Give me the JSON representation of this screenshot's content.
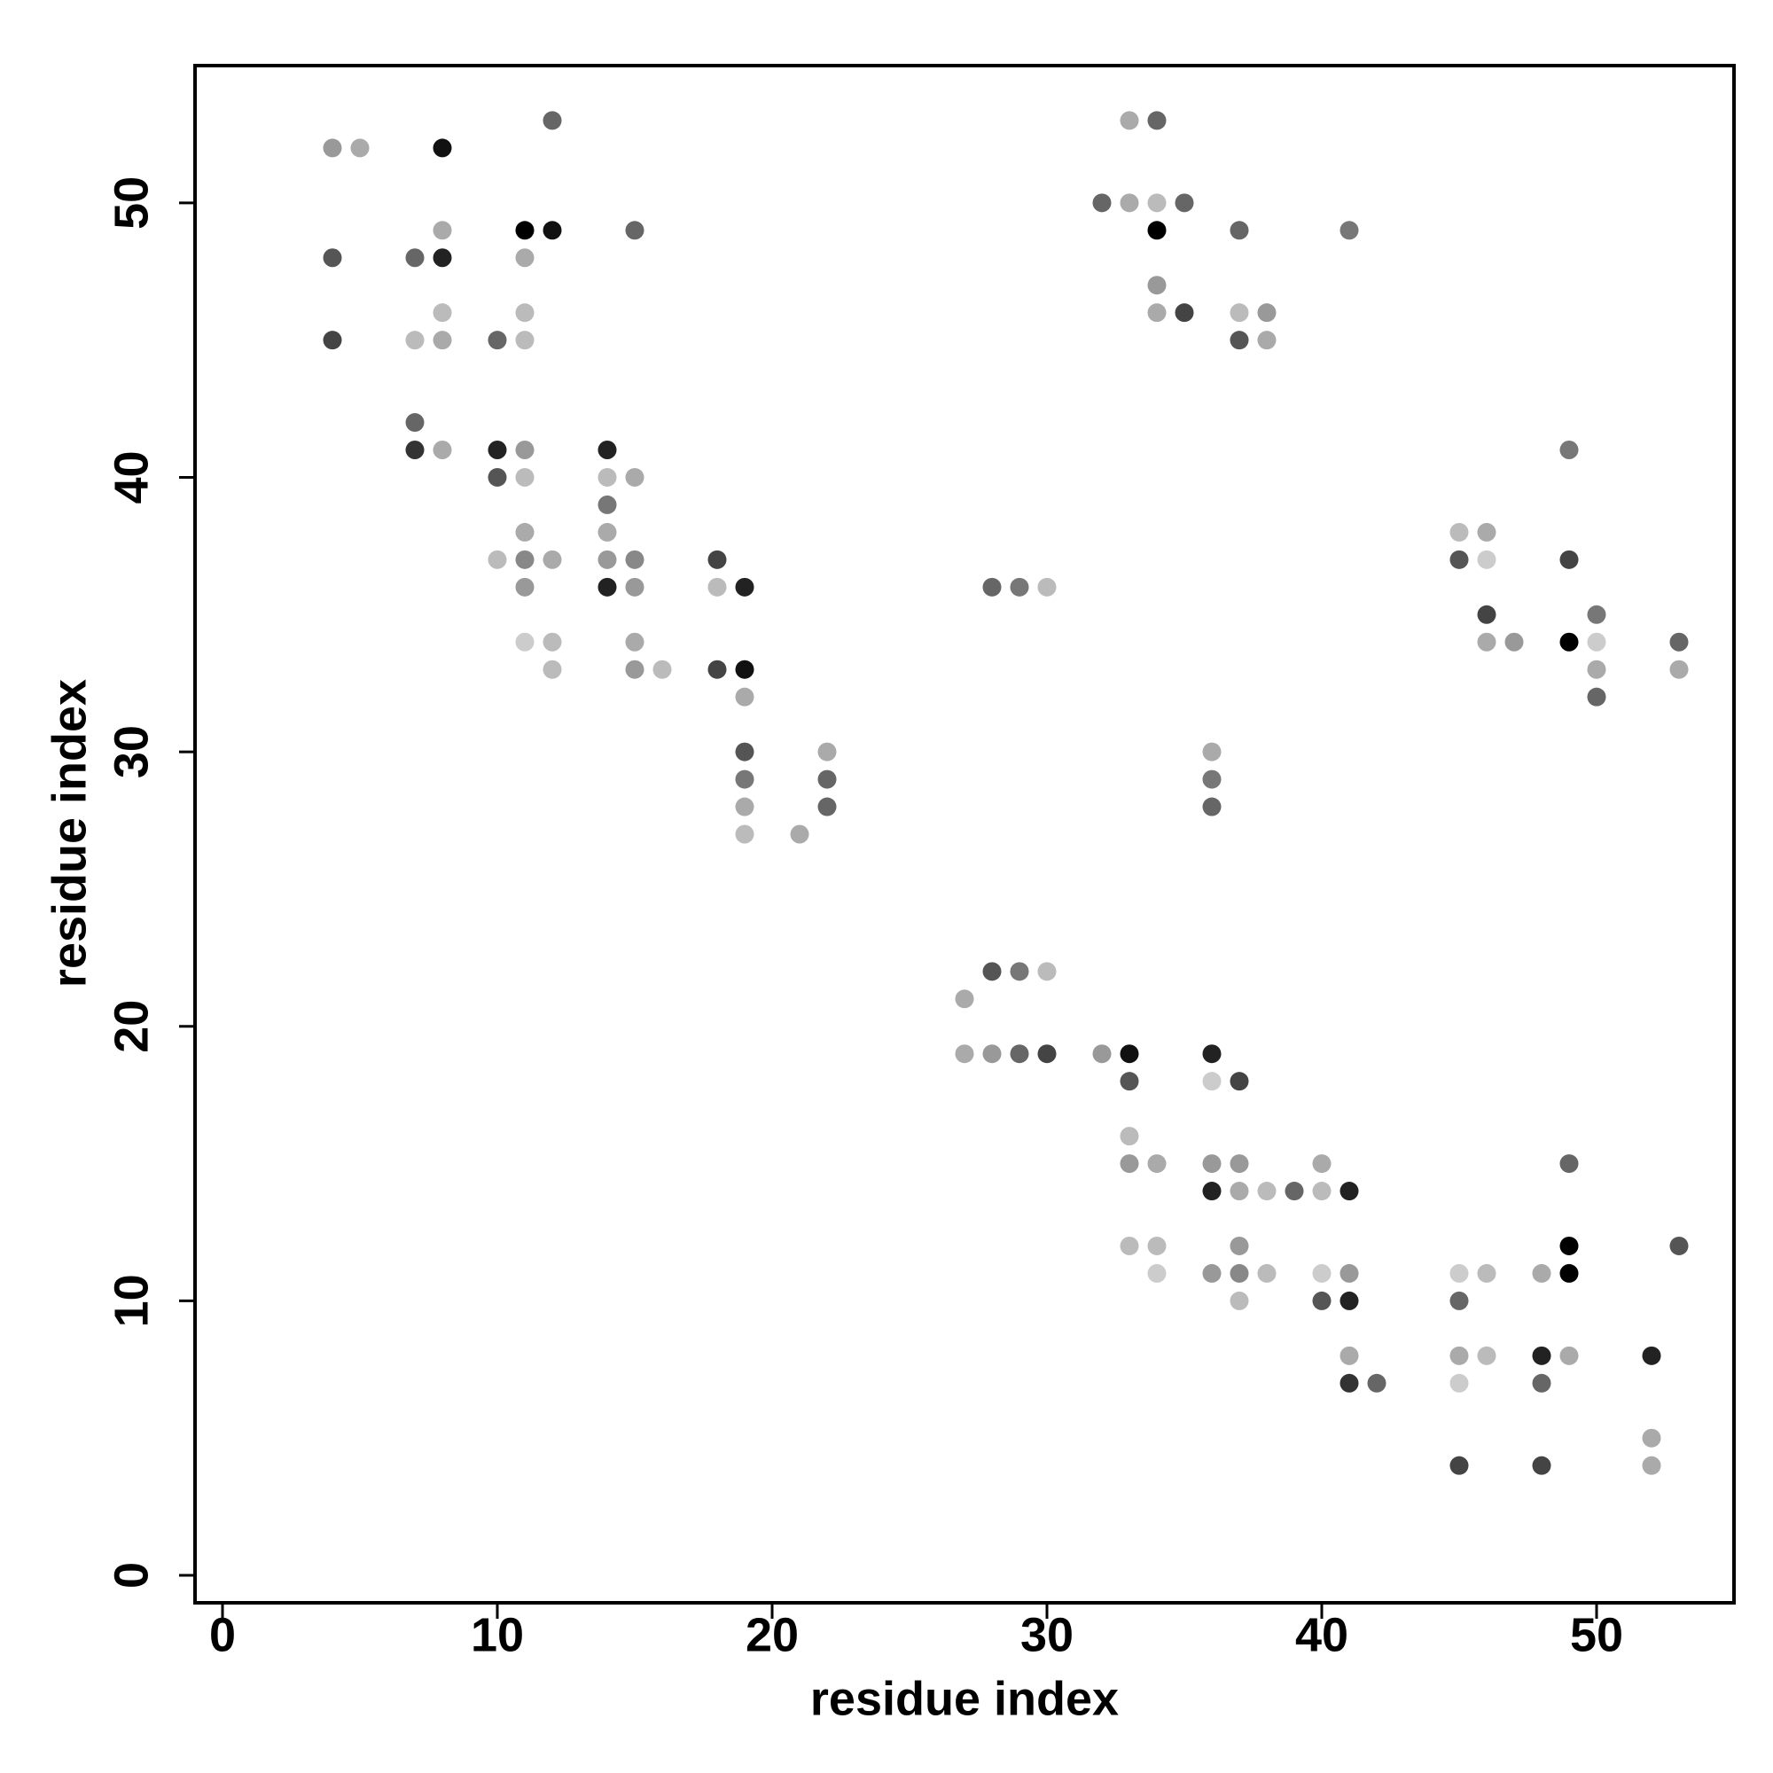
{
  "chart_data": {
    "type": "scatter",
    "x_label": "residue index",
    "y_label": "residue index",
    "xlim": [
      -1,
      55
    ],
    "ylim": [
      -1,
      55
    ],
    "xticks": [
      0,
      10,
      20,
      30,
      40,
      50
    ],
    "yticks": [
      0,
      10,
      20,
      30,
      40,
      50
    ],
    "x": [
      12,
      33,
      34,
      4,
      5,
      8,
      32,
      33,
      34,
      35,
      8,
      11,
      12,
      15,
      34,
      37,
      41,
      4,
      7,
      8,
      11,
      34,
      8,
      11,
      34,
      35,
      37,
      38,
      4,
      7,
      8,
      10,
      11,
      37,
      38,
      7,
      7,
      8,
      10,
      11,
      14,
      49,
      10,
      11,
      14,
      15,
      14,
      11,
      14,
      45,
      46,
      10,
      11,
      12,
      14,
      15,
      18,
      45,
      46,
      49,
      11,
      14,
      15,
      18,
      19,
      28,
      29,
      30,
      46,
      50,
      11,
      12,
      15,
      46,
      47,
      49,
      50,
      53,
      12,
      15,
      16,
      18,
      19,
      50,
      53,
      19,
      50,
      19,
      22,
      36,
      19,
      22,
      36,
      19,
      22,
      36,
      19,
      21,
      28,
      29,
      30,
      27,
      27,
      28,
      29,
      30,
      32,
      33,
      36,
      33,
      36,
      37,
      33,
      33,
      34,
      36,
      37,
      40,
      49,
      36,
      37,
      38,
      39,
      40,
      41,
      33,
      34,
      37,
      49,
      53,
      34,
      36,
      37,
      38,
      40,
      41,
      45,
      46,
      48,
      49,
      37,
      40,
      41,
      45,
      41,
      45,
      46,
      48,
      49,
      52,
      41,
      42,
      45,
      48,
      52,
      45,
      48,
      52
    ],
    "values": [
      53,
      53,
      53,
      52,
      52,
      52,
      50,
      50,
      50,
      50,
      49,
      49,
      49,
      49,
      49,
      49,
      49,
      48,
      48,
      48,
      48,
      47,
      46,
      46,
      46,
      46,
      46,
      46,
      45,
      45,
      45,
      45,
      45,
      45,
      45,
      42,
      41,
      41,
      41,
      41,
      41,
      41,
      40,
      40,
      40,
      40,
      39,
      38,
      38,
      38,
      38,
      37,
      37,
      37,
      37,
      37,
      37,
      37,
      37,
      37,
      36,
      36,
      36,
      36,
      36,
      36,
      36,
      36,
      35,
      35,
      34,
      34,
      34,
      34,
      34,
      34,
      34,
      34,
      33,
      33,
      33,
      33,
      33,
      33,
      33,
      32,
      32,
      30,
      30,
      30,
      29,
      29,
      29,
      28,
      28,
      28,
      27,
      27,
      22,
      22,
      22,
      21,
      19,
      19,
      19,
      19,
      19,
      19,
      19,
      18,
      18,
      18,
      16,
      15,
      15,
      15,
      15,
      15,
      15,
      14,
      14,
      14,
      14,
      14,
      14,
      12,
      12,
      12,
      12,
      12,
      11,
      11,
      11,
      11,
      11,
      11,
      11,
      11,
      11,
      11,
      10,
      10,
      10,
      10,
      8,
      8,
      8,
      8,
      8,
      8,
      7,
      7,
      7,
      7,
      5,
      4,
      4,
      4
    ],
    "colors": [
      "#666",
      "#aaa",
      "#666",
      "#999",
      "#aaa",
      "#111",
      "#666",
      "#aaa",
      "#bbb",
      "#666",
      "#aaa",
      "#000",
      "#111",
      "#666",
      "#000",
      "#666",
      "#777",
      "#555",
      "#666",
      "#222",
      "#aaa",
      "#999",
      "#bbb",
      "#bbb",
      "#aaa",
      "#444",
      "#bbb",
      "#999",
      "#444",
      "#bbb",
      "#aaa",
      "#666",
      "#bbb",
      "#555",
      "#aaa",
      "#666",
      "#333",
      "#aaa",
      "#222",
      "#999",
      "#222",
      "#777",
      "#555",
      "#bbb",
      "#bbb",
      "#aaa",
      "#777",
      "#aaa",
      "#aaa",
      "#bbb",
      "#aaa",
      "#bbb",
      "#888",
      "#aaa",
      "#999",
      "#888",
      "#444",
      "#555",
      "#ccc",
      "#444",
      "#999",
      "#222",
      "#999",
      "#bbb",
      "#222",
      "#666",
      "#777",
      "#bbb",
      "#444",
      "#777",
      "#ccc",
      "#bbb",
      "#aaa",
      "#aaa",
      "#999",
      "#000",
      "#ccc",
      "#666",
      "#bbb",
      "#999",
      "#bbb",
      "#444",
      "#111",
      "#aaa",
      "#aaa",
      "#aaa",
      "#666",
      "#555",
      "#aaa",
      "#aaa",
      "#777",
      "#666",
      "#777",
      "#aaa",
      "#666",
      "#666",
      "#bbb",
      "#aaa",
      "#555",
      "#777",
      "#bbb",
      "#aaa",
      "#aaa",
      "#999",
      "#666",
      "#444",
      "#999",
      "#111",
      "#222",
      "#555",
      "#ccc",
      "#444",
      "#bbb",
      "#999",
      "#aaa",
      "#999",
      "#999",
      "#aaa",
      "#666",
      "#222",
      "#aaa",
      "#bbb",
      "#666",
      "#bbb",
      "#222",
      "#bbb",
      "#bbb",
      "#999",
      "#000",
      "#555",
      "#ccc",
      "#999",
      "#888",
      "#bbb",
      "#ccc",
      "#999",
      "#ccc",
      "#bbb",
      "#aaa",
      "#000",
      "#bbb",
      "#555",
      "#222",
      "#666",
      "#aaa",
      "#aaa",
      "#bbb",
      "#222",
      "#aaa",
      "#222",
      "#333",
      "#666",
      "#ccc",
      "#666",
      "#aaa",
      "#444",
      "#444",
      "#aaa"
    ]
  }
}
